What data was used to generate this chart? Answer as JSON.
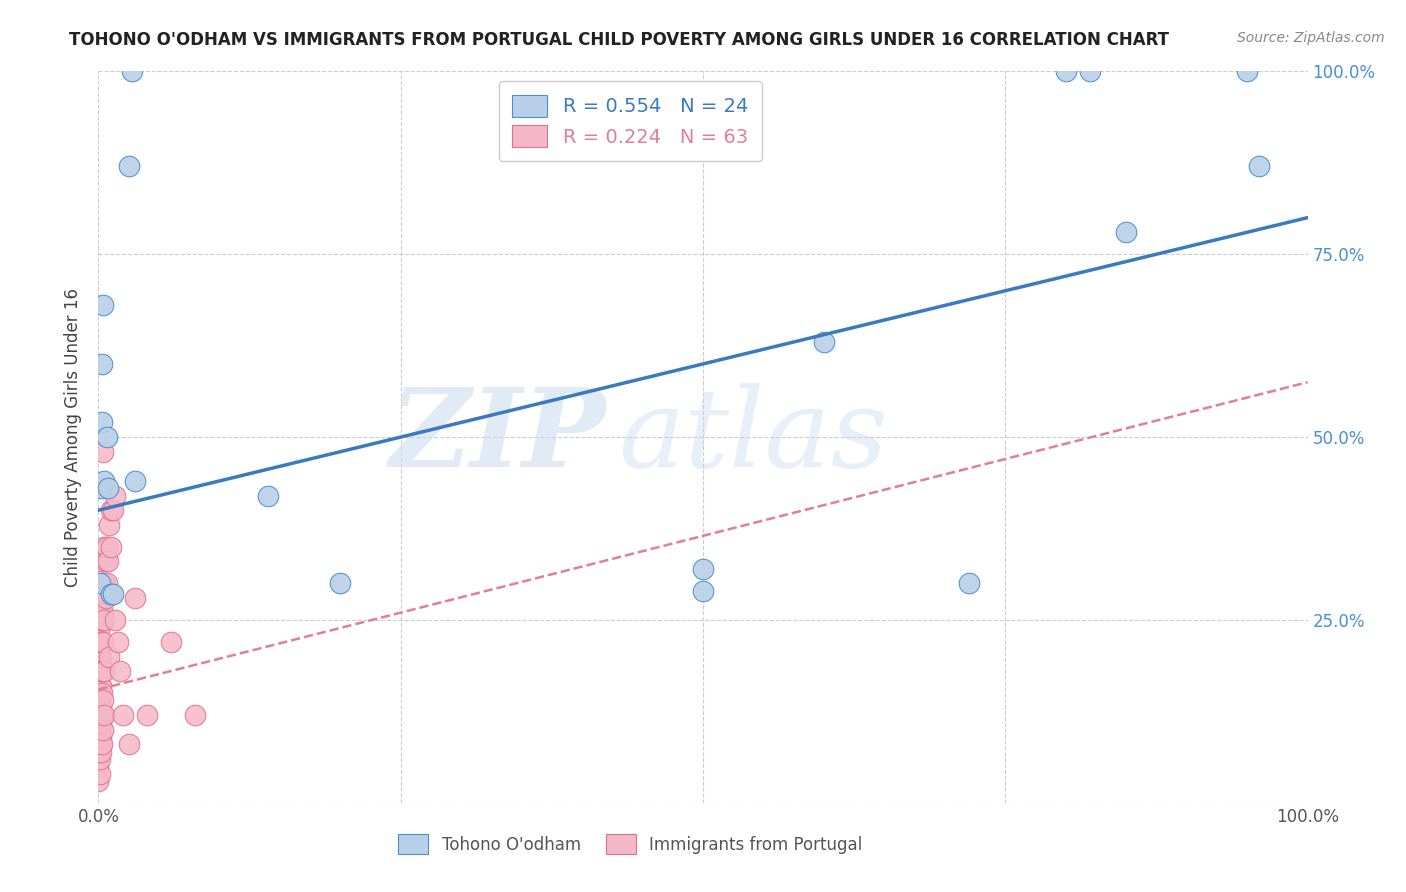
{
  "title": "TOHONO O'ODHAM VS IMMIGRANTS FROM PORTUGAL CHILD POVERTY AMONG GIRLS UNDER 16 CORRELATION CHART",
  "source": "Source: ZipAtlas.com",
  "ylabel": "Child Poverty Among Girls Under 16",
  "background_color": "#ffffff",
  "watermark_text": "ZIP",
  "watermark_text2": "atlas",
  "blue_R": 0.554,
  "blue_N": 24,
  "pink_R": 0.224,
  "pink_N": 63,
  "blue_fill": "#b8d0e8",
  "pink_fill": "#f5b8c8",
  "blue_edge": "#4a8fd0",
  "pink_edge": "#e07090",
  "blue_line_color": "#3a7bbf",
  "pink_line_color": "#e08090",
  "grid_color": "#cccccc",
  "right_tick_color": "#4a8fd0",
  "legend_label_1": "Tohono O'odham",
  "legend_label_2": "Immigrants from Portugal",
  "blue_scatter": [
    [
      0.001,
      0.3
    ],
    [
      0.002,
      0.43
    ],
    [
      0.003,
      0.52
    ],
    [
      0.003,
      0.6
    ],
    [
      0.004,
      0.68
    ],
    [
      0.005,
      0.44
    ],
    [
      0.007,
      0.5
    ],
    [
      0.008,
      0.43
    ],
    [
      0.01,
      0.285
    ],
    [
      0.012,
      0.285
    ],
    [
      0.025,
      0.87
    ],
    [
      0.028,
      1.0
    ],
    [
      0.03,
      0.44
    ],
    [
      0.14,
      0.42
    ],
    [
      0.2,
      0.3
    ],
    [
      0.5,
      0.29
    ],
    [
      0.5,
      0.32
    ],
    [
      0.6,
      0.63
    ],
    [
      0.72,
      0.3
    ],
    [
      0.85,
      0.78
    ],
    [
      0.95,
      1.0
    ],
    [
      0.96,
      0.87
    ],
    [
      0.8,
      1.0
    ],
    [
      0.82,
      1.0
    ]
  ],
  "pink_scatter": [
    [
      0.0,
      0.05
    ],
    [
      0.0,
      0.03
    ],
    [
      0.001,
      0.04
    ],
    [
      0.001,
      0.06
    ],
    [
      0.001,
      0.08
    ],
    [
      0.001,
      0.1
    ],
    [
      0.001,
      0.12
    ],
    [
      0.001,
      0.14
    ],
    [
      0.001,
      0.16
    ],
    [
      0.001,
      0.18
    ],
    [
      0.001,
      0.2
    ],
    [
      0.001,
      0.22
    ],
    [
      0.001,
      0.24
    ],
    [
      0.001,
      0.26
    ],
    [
      0.002,
      0.07
    ],
    [
      0.002,
      0.09
    ],
    [
      0.002,
      0.11
    ],
    [
      0.002,
      0.13
    ],
    [
      0.002,
      0.16
    ],
    [
      0.002,
      0.2
    ],
    [
      0.002,
      0.25
    ],
    [
      0.002,
      0.27
    ],
    [
      0.002,
      0.3
    ],
    [
      0.003,
      0.08
    ],
    [
      0.003,
      0.12
    ],
    [
      0.003,
      0.15
    ],
    [
      0.003,
      0.18
    ],
    [
      0.003,
      0.22
    ],
    [
      0.003,
      0.25
    ],
    [
      0.003,
      0.28
    ],
    [
      0.003,
      0.33
    ],
    [
      0.004,
      0.1
    ],
    [
      0.004,
      0.14
    ],
    [
      0.004,
      0.18
    ],
    [
      0.004,
      0.22
    ],
    [
      0.004,
      0.26
    ],
    [
      0.004,
      0.3
    ],
    [
      0.004,
      0.48
    ],
    [
      0.005,
      0.12
    ],
    [
      0.005,
      0.18
    ],
    [
      0.005,
      0.25
    ],
    [
      0.005,
      0.3
    ],
    [
      0.005,
      0.35
    ],
    [
      0.006,
      0.28
    ],
    [
      0.006,
      0.33
    ],
    [
      0.007,
      0.3
    ],
    [
      0.007,
      0.35
    ],
    [
      0.008,
      0.33
    ],
    [
      0.009,
      0.2
    ],
    [
      0.009,
      0.38
    ],
    [
      0.01,
      0.35
    ],
    [
      0.01,
      0.4
    ],
    [
      0.012,
      0.4
    ],
    [
      0.014,
      0.25
    ],
    [
      0.014,
      0.42
    ],
    [
      0.016,
      0.22
    ],
    [
      0.018,
      0.18
    ],
    [
      0.02,
      0.12
    ],
    [
      0.025,
      0.08
    ],
    [
      0.03,
      0.28
    ],
    [
      0.04,
      0.12
    ],
    [
      0.06,
      0.22
    ],
    [
      0.08,
      0.12
    ]
  ],
  "xlim": [
    0.0,
    1.0
  ],
  "ylim": [
    0.0,
    1.0
  ],
  "xticks": [
    0.0,
    0.25,
    0.5,
    0.75,
    1.0
  ],
  "xticklabels": [
    "0.0%",
    "",
    "",
    "",
    "100.0%"
  ],
  "yticks": [
    0.0,
    0.25,
    0.5,
    0.75,
    1.0
  ],
  "right_yticklabels": [
    "",
    "25.0%",
    "50.0%",
    "75.0%",
    "100.0%"
  ],
  "blue_line_x": [
    0.0,
    1.0
  ],
  "blue_line_y": [
    0.4,
    0.8
  ],
  "pink_line_x": [
    0.0,
    1.0
  ],
  "pink_line_y": [
    0.155,
    0.575
  ]
}
